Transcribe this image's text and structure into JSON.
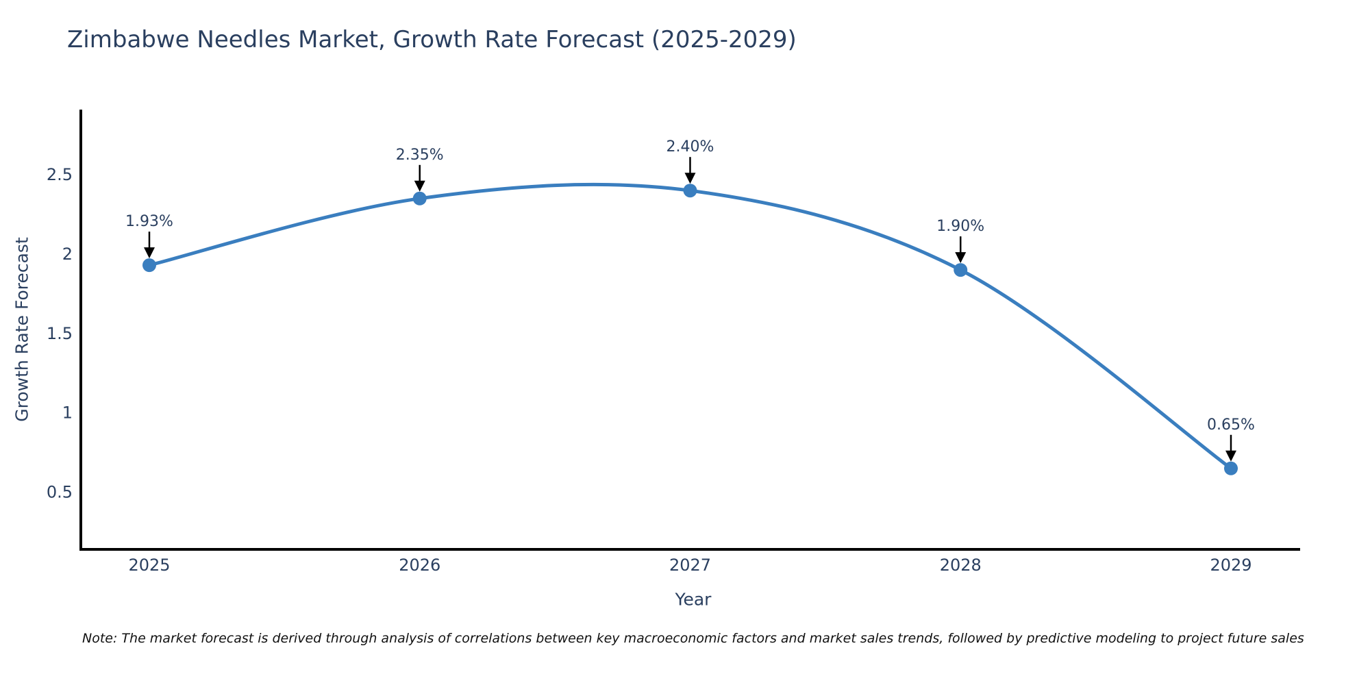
{
  "note": "Note: The market forecast is derived through analysis of correlations between key macroeconomic factors and market sales trends, followed by predictive modeling to project future sales",
  "chart_data": {
    "type": "line",
    "title": "Zimbabwe Needles Market, Growth Rate Forecast (2025-2029)",
    "xlabel": "Year",
    "ylabel": "Growth Rate Forecast",
    "x": [
      "2025",
      "2026",
      "2027",
      "2028",
      "2029"
    ],
    "values": [
      1.93,
      2.35,
      2.4,
      1.9,
      0.65
    ],
    "point_labels": [
      "1.93%",
      "2.35%",
      "2.40%",
      "1.90%",
      "0.65%"
    ],
    "yticks": [
      "0.5",
      "1",
      "1.5",
      "2",
      "2.5"
    ],
    "ytick_values": [
      0.5,
      1.0,
      1.5,
      2.0,
      2.5
    ],
    "ylim": [
      0.14,
      2.91
    ],
    "line_shape": "spline",
    "grid": false,
    "legend_position": "none",
    "line_color": "#3a7ebf",
    "marker_color": "#3a7ebf",
    "axis_color": "#000000",
    "tick_color": "#2a3f5f",
    "annotation_color": "#2a3f5f",
    "arrow_color": "#000000"
  }
}
